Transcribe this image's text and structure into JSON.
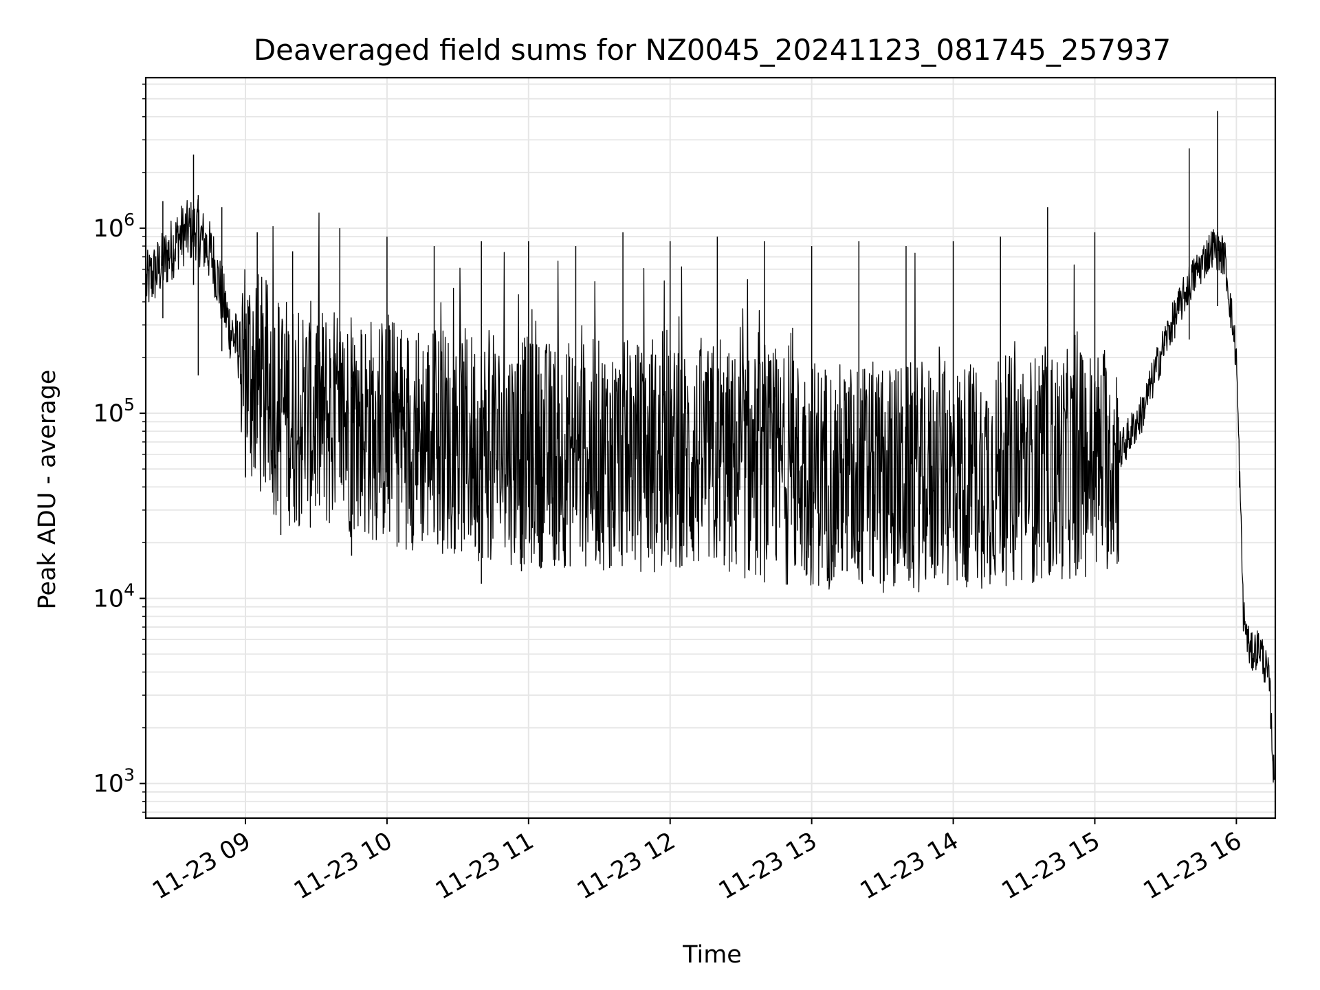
{
  "chart_data": {
    "type": "line",
    "title": "Deaveraged field sums for NZ0045_20241123_081745_257937",
    "xlabel": "Time",
    "ylabel": "Peak ADU - average",
    "yscale": "log",
    "ylim": [
      650,
      6500000
    ],
    "xlim": [
      "2024-11-23 08:17:45",
      "2024-11-23 16:16:30"
    ],
    "grid": true,
    "line_color": "#000000",
    "grid_color": "#e6e6e6",
    "x_ticks": [
      {
        "value": "2024-11-23 09:00",
        "label": "11-23 09"
      },
      {
        "value": "2024-11-23 10:00",
        "label": "11-23 10"
      },
      {
        "value": "2024-11-23 11:00",
        "label": "11-23 11"
      },
      {
        "value": "2024-11-23 12:00",
        "label": "11-23 12"
      },
      {
        "value": "2024-11-23 13:00",
        "label": "11-23 13"
      },
      {
        "value": "2024-11-23 14:00",
        "label": "11-23 14"
      },
      {
        "value": "2024-11-23 15:00",
        "label": "11-23 15"
      },
      {
        "value": "2024-11-23 16:00",
        "label": "11-23 16"
      }
    ],
    "y_ticks": [
      {
        "value": 1000,
        "base": "10",
        "exp": "3"
      },
      {
        "value": 10000,
        "base": "10",
        "exp": "4"
      },
      {
        "value": 100000,
        "base": "10",
        "exp": "5"
      },
      {
        "value": 1000000,
        "base": "10",
        "exp": "6"
      }
    ],
    "series": [
      {
        "x": [
          "2024-11-23 08:18",
          "2024-11-23 08:25",
          "2024-11-23 08:32",
          "2024-11-23 08:39",
          "2024-11-23 08:46",
          "2024-11-23 08:53",
          "2024-11-23 09:00",
          "2024-11-23 09:10",
          "2024-11-23 09:20",
          "2024-11-23 09:30",
          "2024-11-23 09:40",
          "2024-11-23 09:50",
          "2024-11-23 10:00",
          "2024-11-23 10:15",
          "2024-11-23 10:30",
          "2024-11-23 10:45",
          "2024-11-23 11:00",
          "2024-11-23 11:15",
          "2024-11-23 11:30",
          "2024-11-23 11:45",
          "2024-11-23 12:00",
          "2024-11-23 12:15",
          "2024-11-23 12:30",
          "2024-11-23 12:45",
          "2024-11-23 13:00",
          "2024-11-23 13:15",
          "2024-11-23 13:30",
          "2024-11-23 13:45",
          "2024-11-23 14:00",
          "2024-11-23 14:15",
          "2024-11-23 14:30",
          "2024-11-23 14:45",
          "2024-11-23 15:00",
          "2024-11-23 15:10",
          "2024-11-23 15:20",
          "2024-11-23 15:30",
          "2024-11-23 15:40",
          "2024-11-23 15:50",
          "2024-11-23 15:55",
          "2024-11-23 16:00",
          "2024-11-23 16:03",
          "2024-11-23 16:06",
          "2024-11-23 16:10",
          "2024-11-23 16:14",
          "2024-11-23 16:16"
        ],
        "y": [
          500000,
          650000,
          900000,
          1000000,
          700000,
          300000,
          180000,
          120000,
          100000,
          95000,
          90000,
          85000,
          80000,
          75000,
          70000,
          65000,
          62000,
          60000,
          60000,
          58000,
          55000,
          55000,
          52000,
          50000,
          48000,
          46000,
          45000,
          45000,
          46000,
          48000,
          50000,
          52000,
          55000,
          60000,
          100000,
          250000,
          500000,
          800000,
          700000,
          200000,
          8000,
          5000,
          5500,
          3500,
          1000
        ]
      }
    ],
    "peaks": {
      "x": [
        "2024-11-23 08:25",
        "2024-11-23 08:38",
        "2024-11-23 08:50",
        "2024-11-23 09:05",
        "2024-11-23 09:20",
        "2024-11-23 09:40",
        "2024-11-23 10:00",
        "2024-11-23 10:20",
        "2024-11-23 10:40",
        "2024-11-23 11:00",
        "2024-11-23 11:20",
        "2024-11-23 11:40",
        "2024-11-23 12:00",
        "2024-11-23 12:20",
        "2024-11-23 12:40",
        "2024-11-23 13:00",
        "2024-11-23 13:20",
        "2024-11-23 13:40",
        "2024-11-23 14:00",
        "2024-11-23 14:20",
        "2024-11-23 14:40",
        "2024-11-23 15:00",
        "2024-11-23 15:40",
        "2024-11-23 15:52"
      ],
      "y": [
        1400000,
        2500000,
        1300000,
        950000,
        750000,
        1000000,
        900000,
        800000,
        850000,
        850000,
        800000,
        950000,
        850000,
        900000,
        850000,
        800000,
        850000,
        800000,
        850000,
        900000,
        1300000,
        950000,
        2700000,
        4300000
      ]
    },
    "troughs": {
      "x": [
        "2024-11-23 08:40",
        "2024-11-23 09:00",
        "2024-11-23 09:15",
        "2024-11-23 09:45",
        "2024-11-23 10:05",
        "2024-11-23 10:40",
        "2024-11-23 10:57",
        "2024-11-23 11:35",
        "2024-11-23 12:05",
        "2024-11-23 12:45",
        "2024-11-23 13:15",
        "2024-11-23 13:35",
        "2024-11-23 14:05",
        "2024-11-23 14:40",
        "2024-11-23 15:10"
      ],
      "y": [
        160000,
        45000,
        22000,
        17000,
        20000,
        12000,
        14000,
        15000,
        15000,
        16000,
        14000,
        15000,
        13000,
        20000,
        18000
      ]
    }
  }
}
